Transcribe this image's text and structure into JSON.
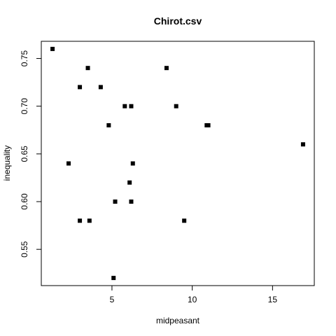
{
  "chart_data": {
    "type": "scatter",
    "title": "Chirot.csv",
    "xlabel": "midpeasant",
    "ylabel": "inequality",
    "xlim": [
      0.6,
      17.6
    ],
    "ylim": [
      0.512,
      0.768
    ],
    "x_ticks": [
      5,
      10,
      15
    ],
    "y_ticks": [
      0.55,
      0.6,
      0.65,
      0.7,
      0.75
    ],
    "y_tick_labels": [
      "0.55",
      "0.60",
      "0.65",
      "0.70",
      "0.75"
    ],
    "grid": false,
    "legend": "none",
    "marker": "filled-square",
    "marker_color": "#000000",
    "points": [
      {
        "x": 1.3,
        "y": 0.76
      },
      {
        "x": 3.5,
        "y": 0.74
      },
      {
        "x": 8.4,
        "y": 0.74
      },
      {
        "x": 3.0,
        "y": 0.72
      },
      {
        "x": 4.3,
        "y": 0.72
      },
      {
        "x": 5.8,
        "y": 0.7
      },
      {
        "x": 6.2,
        "y": 0.7
      },
      {
        "x": 9.0,
        "y": 0.7
      },
      {
        "x": 4.8,
        "y": 0.68
      },
      {
        "x": 10.9,
        "y": 0.68
      },
      {
        "x": 11.0,
        "y": 0.68
      },
      {
        "x": 16.9,
        "y": 0.66
      },
      {
        "x": 2.3,
        "y": 0.64
      },
      {
        "x": 6.3,
        "y": 0.64
      },
      {
        "x": 6.1,
        "y": 0.62
      },
      {
        "x": 5.2,
        "y": 0.6
      },
      {
        "x": 6.2,
        "y": 0.6
      },
      {
        "x": 3.0,
        "y": 0.58
      },
      {
        "x": 3.6,
        "y": 0.58
      },
      {
        "x": 9.5,
        "y": 0.58
      },
      {
        "x": 5.1,
        "y": 0.52
      }
    ]
  }
}
